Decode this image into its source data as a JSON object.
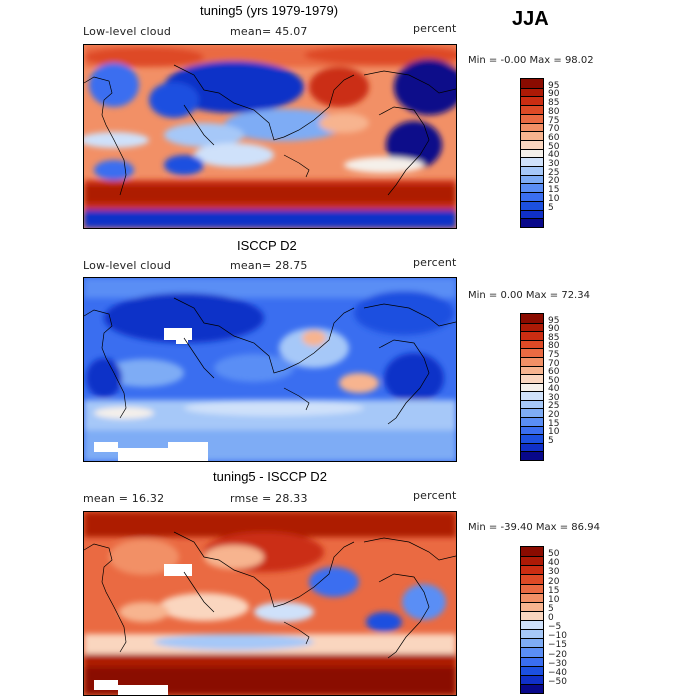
{
  "season": "JJA",
  "palettes": {
    "abs": [
      "#08088a",
      "#1030c8",
      "#1c50e0",
      "#3a6ef0",
      "#5a8ef5",
      "#7eacf5",
      "#a6c8f8",
      "#cfe1fa",
      "#f5f0ea",
      "#fad6bf",
      "#f7b48f",
      "#f29066",
      "#ea6a42",
      "#de4a26",
      "#cb2d12",
      "#ad1a06",
      "#8a0b00"
    ],
    "diff": [
      "#08088a",
      "#1030c8",
      "#1c50e0",
      "#3a6ef0",
      "#5a8ef5",
      "#7eacf5",
      "#a6c8f8",
      "#cfe1fa",
      "#fad6bf",
      "#f7b48f",
      "#f29066",
      "#ea6a42",
      "#de4a26",
      "#cb2d12",
      "#ad1a06",
      "#8a0b00"
    ]
  },
  "panels": [
    {
      "title": "tuning5 (yrs 1979-1979)",
      "left_label": "Low-level cloud",
      "center_label": "mean=  45.07",
      "right_label": "percent",
      "minmax": "Min =   -0.00 Max =   98.02",
      "legend_ticks": [
        "95",
        "90",
        "85",
        "80",
        "75",
        "70",
        "60",
        "50",
        "40",
        "30",
        "25",
        "20",
        "15",
        "10",
        "5"
      ],
      "palette": "abs"
    },
    {
      "title": "ISCCP D2",
      "left_label": "Low-level cloud",
      "center_label": "mean=  28.75",
      "right_label": "percent",
      "minmax": "Min =   0.00 Max =   72.34",
      "legend_ticks": [
        "95",
        "90",
        "85",
        "80",
        "75",
        "70",
        "60",
        "50",
        "40",
        "30",
        "25",
        "20",
        "15",
        "10",
        "5"
      ],
      "palette": "abs"
    },
    {
      "title": "tuning5 - ISCCP D2",
      "left_label": "mean =  16.32",
      "center_label": "rmse =  28.33",
      "right_label": "percent",
      "minmax": "Min =  -39.40 Max =   86.94",
      "legend_ticks": [
        "50",
        "40",
        "30",
        "20",
        "15",
        "10",
        "5",
        "0",
        "−5",
        "−10",
        "−15",
        "−20",
        "−30",
        "−40",
        "−50"
      ],
      "palette": "diff"
    }
  ]
}
